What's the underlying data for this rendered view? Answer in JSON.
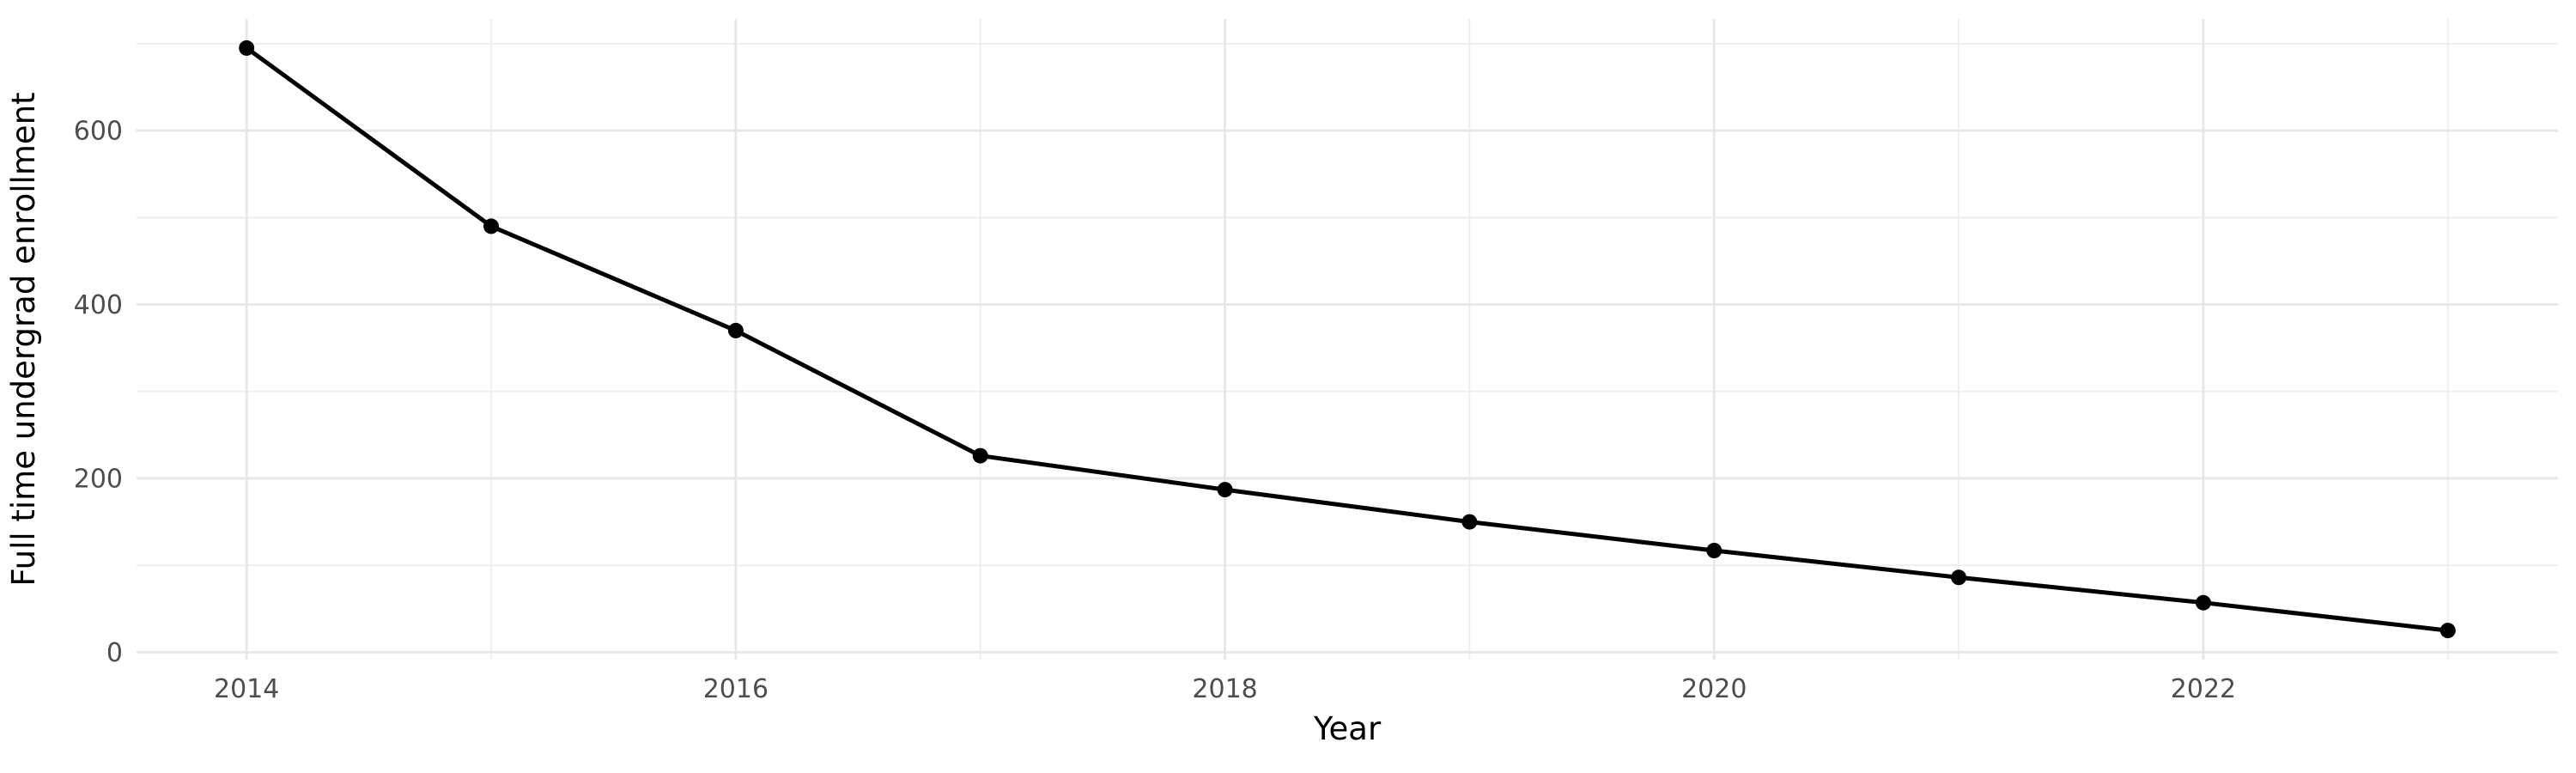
{
  "figure": {
    "background_color": "#ffffff",
    "description": "Line chart of full time undergrad enrollment declining from 2014 to 2023"
  },
  "chart_data": {
    "type": "line",
    "title": "",
    "xlabel": "Year",
    "ylabel": "Full time undergrad enrollment",
    "x": [
      2014,
      2015,
      2016,
      2017,
      2018,
      2019,
      2020,
      2021,
      2022,
      2023
    ],
    "values": [
      695,
      490,
      370,
      226,
      187,
      150,
      117,
      86,
      57,
      25
    ],
    "series_name": "Full time undergrad enrollment",
    "x_tick_values": [
      2014,
      2016,
      2018,
      2020,
      2022
    ],
    "x_tick_labels": [
      "2014",
      "2016",
      "2018",
      "2020",
      "2022"
    ],
    "x_minor_ticks": [
      2015,
      2017,
      2019,
      2021,
      2023
    ],
    "y_tick_values": [
      0,
      200,
      400,
      600
    ],
    "y_tick_labels": [
      "0",
      "200",
      "400",
      "600"
    ],
    "y_minor_ticks": [
      100,
      300,
      500,
      700
    ],
    "xlim": [
      2013.55,
      2023.45
    ],
    "ylim": [
      -8.5,
      728.5
    ],
    "grid": true,
    "legend": false,
    "markers": true,
    "colors": {
      "line": "#000000",
      "point": "#000000",
      "grid_major": "#e7e7e7",
      "grid_minor": "#ededed",
      "tick_text": "#4d4d4d",
      "axis_title_text": "#000000",
      "background": "#ffffff"
    },
    "line_width": 5,
    "point_radius": 9
  }
}
